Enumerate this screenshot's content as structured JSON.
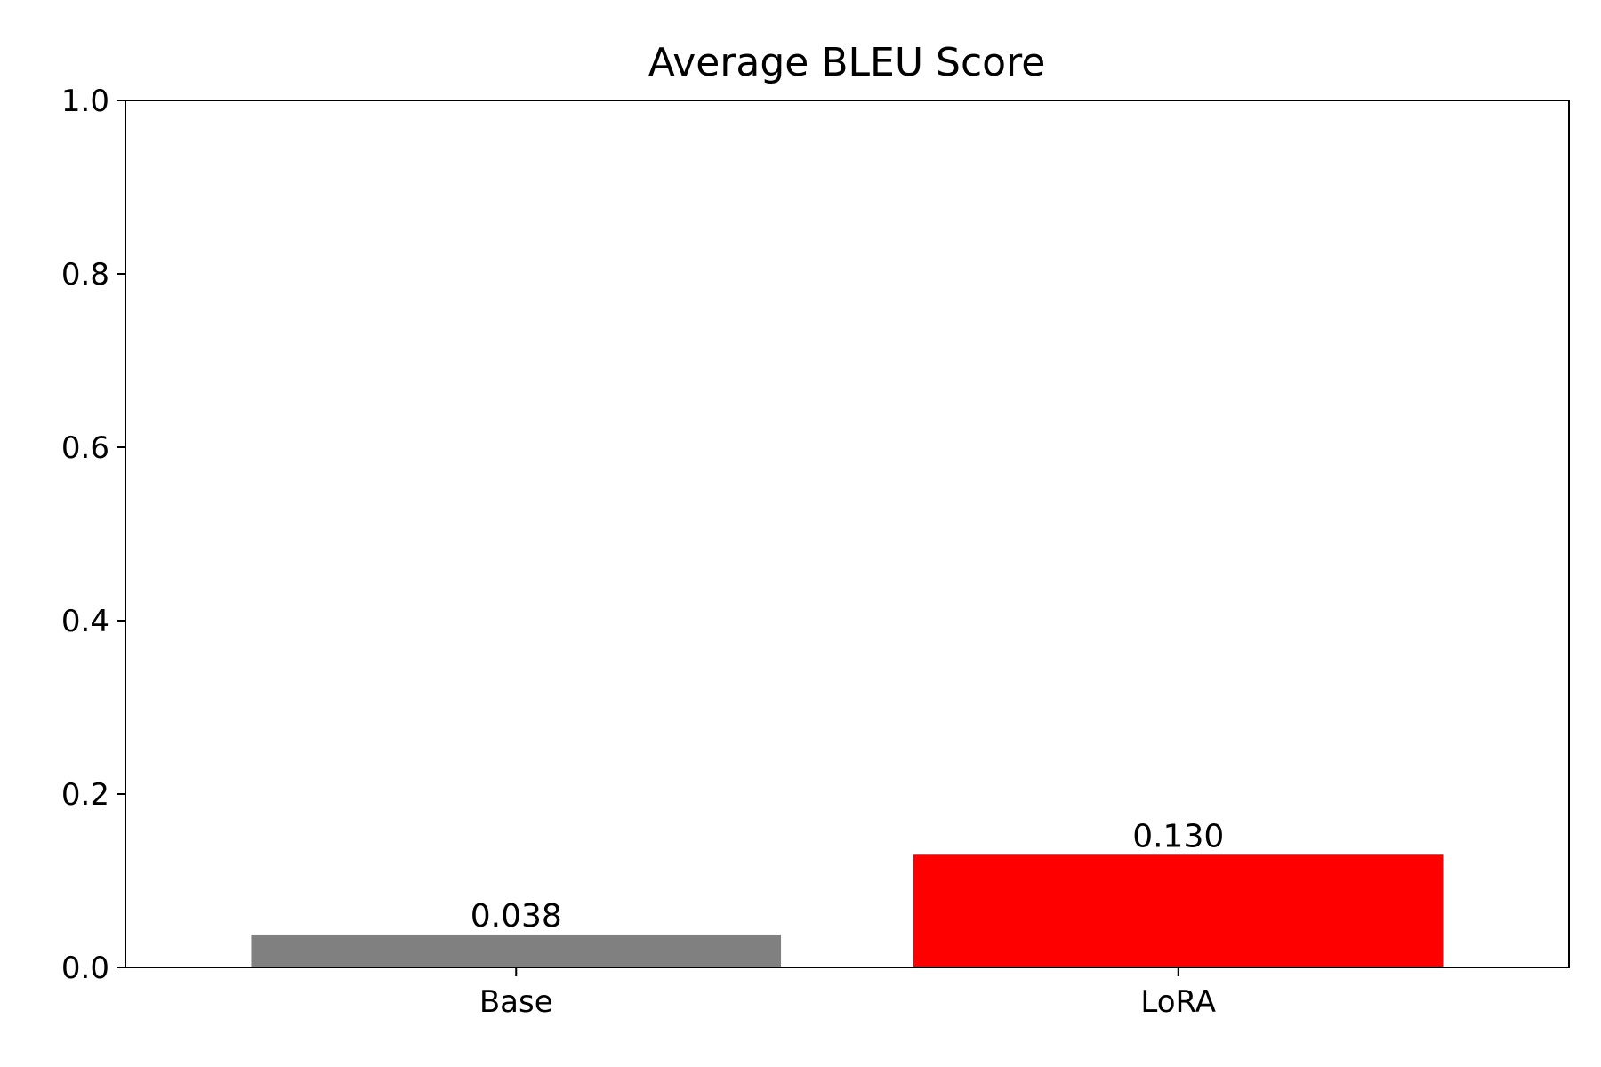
{
  "chart_data": {
    "type": "bar",
    "title": "Average BLEU Score",
    "xlabel": "",
    "ylabel": "",
    "categories": [
      "Base",
      "LoRA"
    ],
    "values": [
      0.038,
      0.13
    ],
    "value_labels": [
      "0.038",
      "0.130"
    ],
    "colors": [
      "#808080",
      "#ff0000"
    ],
    "ylim": [
      0,
      1.0
    ],
    "yticks": [
      0.0,
      0.2,
      0.4,
      0.6,
      0.8,
      1.0
    ],
    "ytick_labels": [
      "0.0",
      "0.2",
      "0.4",
      "0.6",
      "0.8",
      "1.0"
    ],
    "grid": false,
    "legend": "none"
  }
}
